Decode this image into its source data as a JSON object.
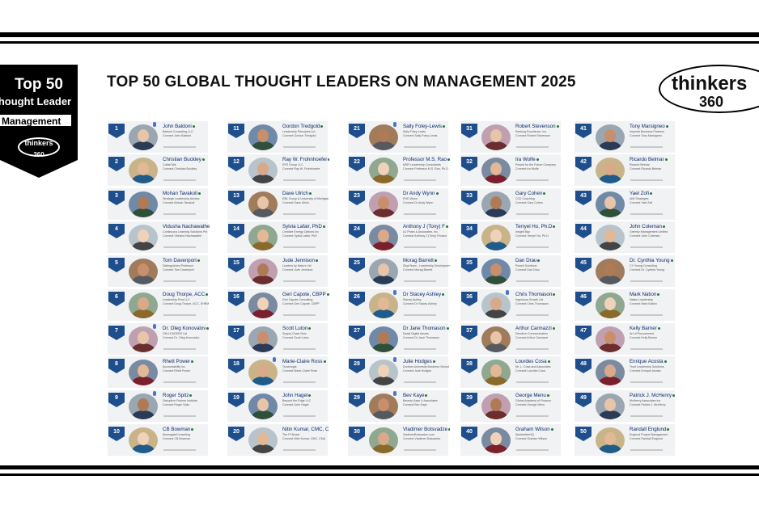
{
  "title": "TOP 50 GLOBAL THOUGHT LEADERS ON MANAGEMENT 2025",
  "badge": {
    "top": "Top 50",
    "line2": "Thought Leader",
    "line3": "Management",
    "logo_word": "thinkers",
    "logo_num": "360",
    "color": "#000000"
  },
  "logo": {
    "word": "thinkers",
    "num": "360"
  },
  "rank_color": "#1f4e8c",
  "leaders": [
    {
      "rank": "1",
      "name": "John Baldoni",
      "line1": "Baldoni Consulting LLC",
      "line2": "Connect John Baldoni"
    },
    {
      "rank": "2",
      "name": "Christian Buckley",
      "line1": "CollabTalk",
      "line2": "Connect Christian Buckley"
    },
    {
      "rank": "3",
      "name": "Mohan Tavakoli",
      "line1": "Strategic Leadership Advisor",
      "line2": "Connect Mohan Tavakoli"
    },
    {
      "rank": "4",
      "name": "Vidusha Nachawathe",
      "line1": "Continuous Learning Solutions Pvt",
      "line2": "Connect Vidusha Nachawathe"
    },
    {
      "rank": "5",
      "name": "Tom Davenport",
      "line1": "Distinguished Professor",
      "line2": "Connect Tom Davenport"
    },
    {
      "rank": "6",
      "name": "Doug Thorpe, ACC",
      "line1": "Leadership Pros LLC",
      "line2": "Connect Doug Thorpe, ACC, SHRM"
    },
    {
      "rank": "7",
      "name": "Dr. Oleg Konovalov",
      "line1": "OKLLEADERS Ltd",
      "line2": "Connect Dr. Oleg Konovalov"
    },
    {
      "rank": "8",
      "name": "Rhett Power",
      "line1": "Accountability Inc",
      "line2": "Connect Rhett Power"
    },
    {
      "rank": "9",
      "name": "Roger Spitz",
      "line1": "Disruptive Futures Institute",
      "line2": "Connect Roger Spitz"
    },
    {
      "rank": "10",
      "name": "CB Bowman",
      "line1": "MoorsgateConsulting",
      "line2": "Connect CB Bowman"
    },
    {
      "rank": "11",
      "name": "Gordon Tredgold",
      "line1": "Leadership Principles Ltd",
      "line2": "Connect Gordon Tredgold"
    },
    {
      "rank": "12",
      "name": "Ray W. Frohnhoefer",
      "line1": "RFS Group LLC",
      "line2": "Connect Ray W. Frohnhoefer"
    },
    {
      "rank": "13",
      "name": "Dave Ulrich",
      "line1": "RBL Group & University of Michigan",
      "line2": "Connect Dave Ulrich"
    },
    {
      "rank": "14",
      "name": "Sylvia Lafair, PhD",
      "line1": "Creative Energy Options Inc",
      "line2": "Connect Sylvia Lafair, PhD"
    },
    {
      "rank": "15",
      "name": "Jude Jennison",
      "line1": "Leaders by Nature Ltd",
      "line2": "Connect Jude Jennison"
    },
    {
      "rank": "16",
      "name": "Geri Capote, CBPP",
      "line1": "Geri Capote Consulting",
      "line2": "Connect Geri Capote, CBPP"
    },
    {
      "rank": "17",
      "name": "Scott Luton",
      "line1": "Supply Chain Now",
      "line2": "Connect Scott Luton"
    },
    {
      "rank": "18",
      "name": "Marie-Claire Ross",
      "line1": "Trustologie",
      "line2": "Connect Marie-Claire Ross"
    },
    {
      "rank": "19",
      "name": "John Hagel",
      "line1": "Beyond the Edge LLC",
      "line2": "Connect John Hagel"
    },
    {
      "rank": "20",
      "name": "Nitin Kumar, CMC, C",
      "line1": "The PI Board",
      "line2": "Connect Nitin Kumar, CMC, CMA"
    },
    {
      "rank": "21",
      "name": "Sally Foley-Lewis",
      "line1": "Sally Foley-Lewis",
      "line2": "Connect Sally Foley-Lewis"
    },
    {
      "rank": "22",
      "name": "Professor M.S. Rao",
      "line1": "MSR Leadership Consultants",
      "line2": "Connect Professor M.S. Rao, Ph.D."
    },
    {
      "rank": "23",
      "name": "Dr Andy Wynn",
      "line1": "PHD Wynn",
      "line2": "Connect Dr Andy Wynn"
    },
    {
      "rank": "24",
      "name": "Anthony J (Tony) F",
      "line1": "AJ Pham & Associates, Inc.",
      "line2": "Connect Anthony J (Tony) Fricano"
    },
    {
      "rank": "25",
      "name": "Morag Barrett",
      "line1": "SkyeTeam - Leadership Development",
      "line2": "Connect Morag Barrett"
    },
    {
      "rank": "26",
      "name": "Dr Stacey Ashley",
      "line1": "Stacey Ashley",
      "line2": "Connect Dr Stacey Ashley"
    },
    {
      "rank": "27",
      "name": "Dr Jane Thomason",
      "line1": "Kadal Digital Assets",
      "line2": "Connect Dr Jane Thomason"
    },
    {
      "rank": "28",
      "name": "Julie Hodges",
      "line1": "Durham University Business School",
      "line2": "Connect Julie Hodges"
    },
    {
      "rank": "29",
      "name": "Bev Kaye",
      "line1": "Beverly Kaye & Associates",
      "line2": "Connect Bev Kaye"
    },
    {
      "rank": "30",
      "name": "Vladimer Botsvadze",
      "line1": "VladimerBotsvadze.com",
      "line2": "Connect Vladimer Botsvadze"
    },
    {
      "rank": "31",
      "name": "Robert Stevenson",
      "line1": "Seeking Excellence, Inc.",
      "line2": "Connect Robert Stevenson"
    },
    {
      "rank": "32",
      "name": "Ira Wolfe",
      "line1": "Poised for the Future Company",
      "line2": "Connect Ira Wolfe"
    },
    {
      "rank": "33",
      "name": "Gary Cohen",
      "line1": "CO2 Coaching",
      "line2": "Connect Gary Cohen"
    },
    {
      "rank": "34",
      "name": "Terryel Ho, Ph.D",
      "line1": "Insight Bay",
      "line2": "Connect Terryel Ho, Ph.D."
    },
    {
      "rank": "35",
      "name": "Dan Drau",
      "line1": "Powell Solutions",
      "line2": "Connect Dan Drau"
    },
    {
      "rank": "36",
      "name": "Chris Thomason",
      "line1": "Ingenious Growth Ltd",
      "line2": "Connect Chris Thomason"
    },
    {
      "rank": "37",
      "name": "Arthur Carmazzi",
      "line1": "Directive Communication",
      "line2": "Connect Arthur Carmazzi"
    },
    {
      "rank": "38",
      "name": "Lourdes Cosa",
      "line1": "Mr. L. Cosa and Associates",
      "line2": "Connect Lourdes Cosa"
    },
    {
      "rank": "39",
      "name": "George Menu",
      "line1": "Global Academy of Finance",
      "line2": "Connect George Menu"
    },
    {
      "rank": "40",
      "name": "Graham Wilson",
      "line1": "WorkbetterHQ",
      "line2": "Connect Graham Wilson"
    },
    {
      "rank": "41",
      "name": "Tony Marsigneo",
      "line1": "Imperial Business Partners",
      "line2": "Connect Tony Marsigneo"
    },
    {
      "rank": "42",
      "name": "Ricardo Belmar",
      "line1": "Ricardo Belmar",
      "line2": "Connect Ricardo Belmar"
    },
    {
      "rank": "43",
      "name": "Yael Zofi",
      "line1": "AIM Strategies",
      "line2": "Connect Yael Zofi"
    },
    {
      "rank": "44",
      "name": "John Coleman",
      "line1": "Greenly Management Limited",
      "line2": "Connect John Coleman"
    },
    {
      "rank": "45",
      "name": "Dr. Cynthia Young",
      "line1": "CY Young Consulting",
      "line2": "Connect Dr. Cynthia Young"
    },
    {
      "rank": "46",
      "name": "Mark Nation",
      "line1": "Nation Leadership",
      "line2": "Connect Mark Nation"
    },
    {
      "rank": "47",
      "name": "Kelly Barner",
      "line1": "Art of Procurement",
      "line2": "Connect Kelly Barner"
    },
    {
      "rank": "48",
      "name": "Enrique Acosta",
      "line1": "Trust Leadership Solutions",
      "line2": "Connect Enrique Acosta"
    },
    {
      "rank": "49",
      "name": "Patrick J. McHenry",
      "line1": "McHenry Associates Inc",
      "line2": "Connect Patrick J. McHenry"
    },
    {
      "rank": "50",
      "name": "Randall Englund",
      "line1": "Englund Project Management",
      "line2": "Connect Randall Englund"
    }
  ]
}
